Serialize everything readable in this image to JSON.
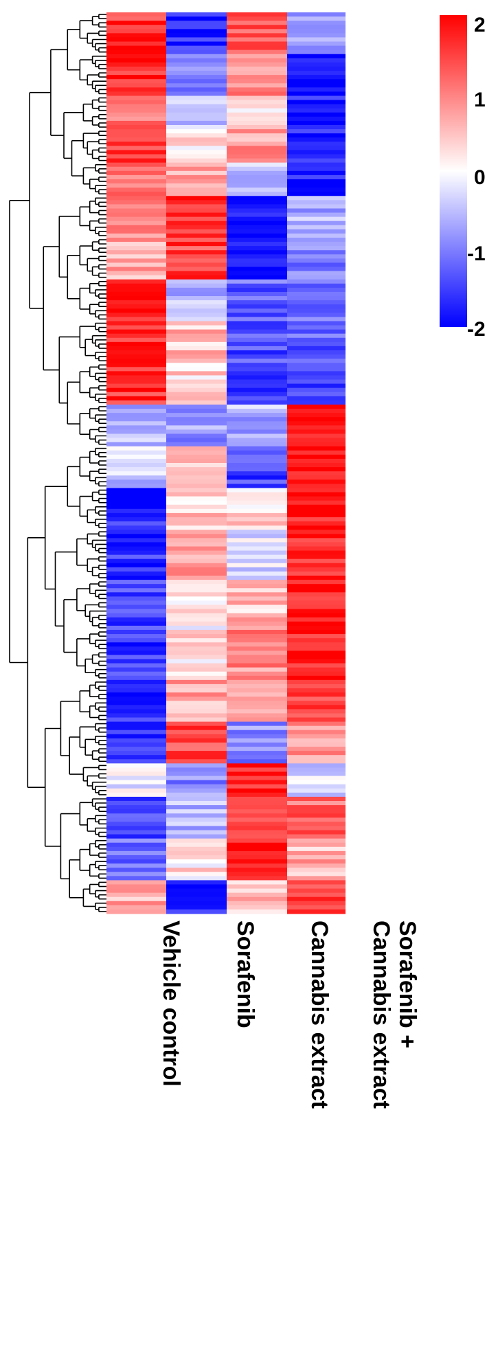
{
  "chart_data": {
    "type": "heatmap",
    "title": "",
    "columns": [
      "Vehicle control",
      "Sorafenib",
      "Cannabis extract",
      "Sorafenib +\nCannabis extract"
    ],
    "color_scale": {
      "min": -2,
      "max": 2,
      "ticks": [
        "2",
        "1",
        "0",
        "-1",
        "-2"
      ],
      "low_color": "#0000ff",
      "mid_color": "#ffffff",
      "high_color": "#ff0000"
    },
    "row_dendrogram": true,
    "row_blocks": [
      {
        "rows": 10,
        "values": [
          1.6,
          -1.7,
          1.2,
          -0.6
        ]
      },
      {
        "rows": 10,
        "values": [
          1.7,
          -0.9,
          0.9,
          -1.8
        ]
      },
      {
        "rows": 8,
        "values": [
          1.2,
          -0.4,
          0.1,
          -1.8
        ]
      },
      {
        "rows": 8,
        "values": [
          1.5,
          0.3,
          0.8,
          -1.8
        ]
      },
      {
        "rows": 8,
        "values": [
          1.0,
          0.8,
          -0.4,
          -1.8
        ]
      },
      {
        "rows": 10,
        "values": [
          0.8,
          1.6,
          -1.9,
          -0.6
        ]
      },
      {
        "rows": 10,
        "values": [
          0.7,
          1.5,
          -1.8,
          -1.0
        ]
      },
      {
        "rows": 10,
        "values": [
          1.8,
          -0.5,
          -1.2,
          -1.0
        ]
      },
      {
        "rows": 10,
        "values": [
          1.7,
          0.5,
          -1.4,
          -1.3
        ]
      },
      {
        "rows": 10,
        "values": [
          1.6,
          0.3,
          -1.5,
          -1.4
        ]
      },
      {
        "rows": 10,
        "values": [
          -0.6,
          -0.8,
          -0.6,
          1.8
        ]
      },
      {
        "rows": 10,
        "values": [
          -0.4,
          0.6,
          -1.5,
          1.8
        ]
      },
      {
        "rows": 10,
        "values": [
          -1.7,
          0.4,
          0.3,
          1.7
        ]
      },
      {
        "rows": 12,
        "values": [
          -1.6,
          0.7,
          -0.3,
          1.6
        ]
      },
      {
        "rows": 12,
        "values": [
          -1.5,
          0.1,
          0.5,
          1.7
        ]
      },
      {
        "rows": 12,
        "values": [
          -1.6,
          0.3,
          0.9,
          1.7
        ]
      },
      {
        "rows": 10,
        "values": [
          -1.7,
          0.7,
          0.8,
          1.5
        ]
      },
      {
        "rows": 10,
        "values": [
          -1.6,
          1.5,
          -0.9,
          0.8
        ]
      },
      {
        "rows": 8,
        "values": [
          -0.2,
          -0.9,
          1.8,
          -0.3
        ]
      },
      {
        "rows": 10,
        "values": [
          -1.5,
          -0.5,
          1.5,
          1.2
        ]
      },
      {
        "rows": 10,
        "values": [
          -1.2,
          0.2,
          1.8,
          0.6
        ]
      },
      {
        "rows": 8,
        "values": [
          0.6,
          -1.8,
          0.6,
          1.5
        ]
      }
    ]
  }
}
